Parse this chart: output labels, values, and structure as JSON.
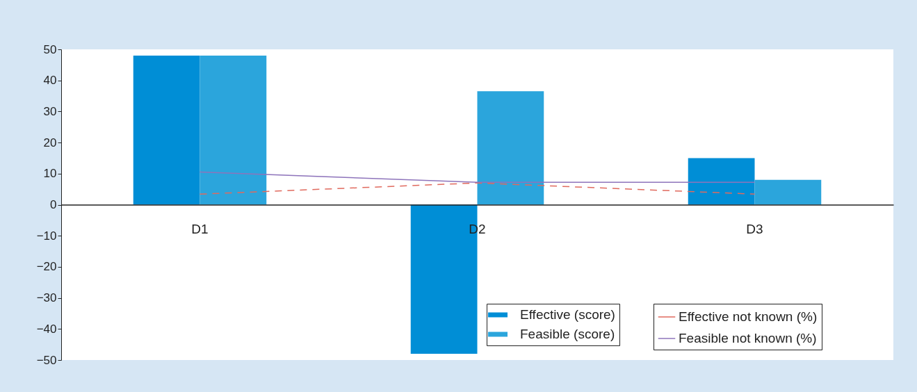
{
  "chart_data": {
    "type": "bar",
    "categories": [
      "D1",
      "D2",
      "D3"
    ],
    "ylim": [
      -50,
      50
    ],
    "yticks": [
      -50,
      -40,
      -30,
      -20,
      -10,
      0,
      10,
      20,
      30,
      40,
      50
    ],
    "grid": false,
    "legend": "bottom right",
    "series": [
      {
        "name": "Effective (score)",
        "color": "#008ed6",
        "values": [
          48,
          -48,
          15
        ]
      },
      {
        "name": "Feasible (score)",
        "color": "#2ba5dc",
        "values": [
          48,
          36.5,
          8
        ]
      },
      {
        "name": "Effective not known (%)",
        "type": "line",
        "line_style": "dashed",
        "color": "#e06a5e",
        "values": [
          3.4,
          7,
          3.4
        ]
      },
      {
        "name": "Feasible not known (%)",
        "type": "line",
        "line_style": "solid",
        "color": "#8e74bb",
        "values": [
          10.5,
          7.2,
          7.2
        ]
      }
    ]
  }
}
